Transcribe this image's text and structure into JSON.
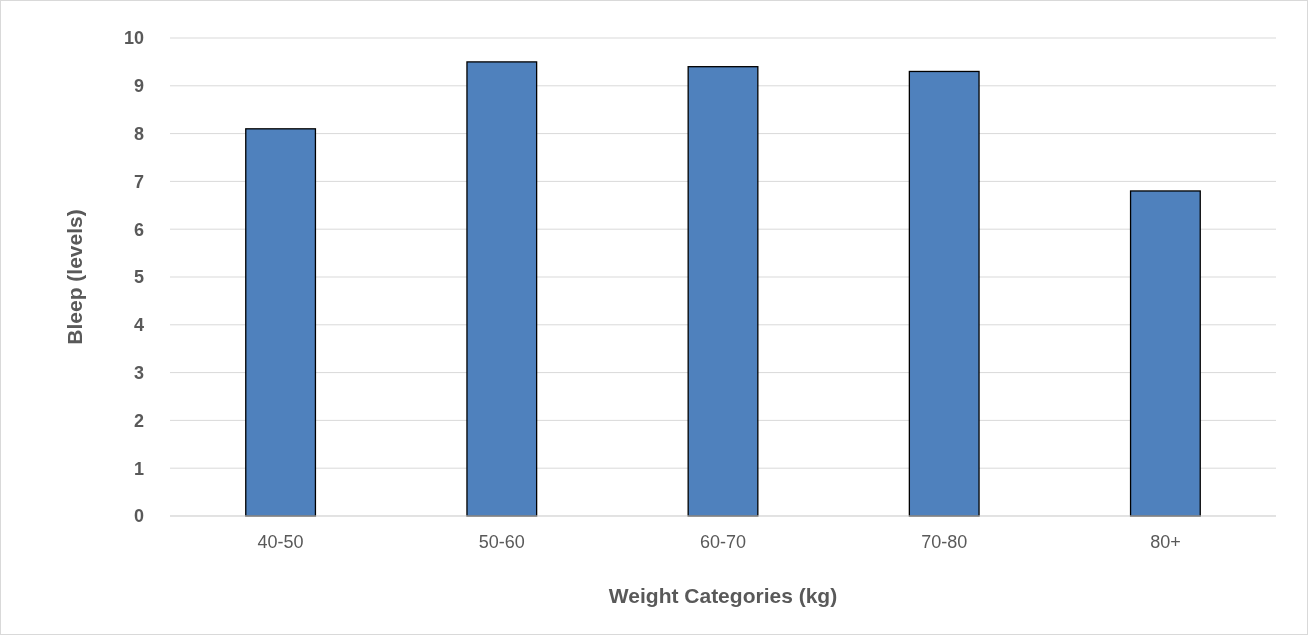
{
  "chart_data": {
    "type": "bar",
    "xlabel": "Weight Categories (kg)",
    "ylabel": "Bleep (levels)",
    "categories": [
      "40-50",
      "50-60",
      "60-70",
      "70-80",
      "80+"
    ],
    "values": [
      8.1,
      9.5,
      9.4,
      9.3,
      6.8
    ],
    "color": "#4f81bd",
    "ylim": [
      0,
      10
    ],
    "yticks": [
      0,
      1,
      2,
      3,
      4,
      5,
      6,
      7,
      8,
      9,
      10
    ],
    "grid": "y"
  }
}
